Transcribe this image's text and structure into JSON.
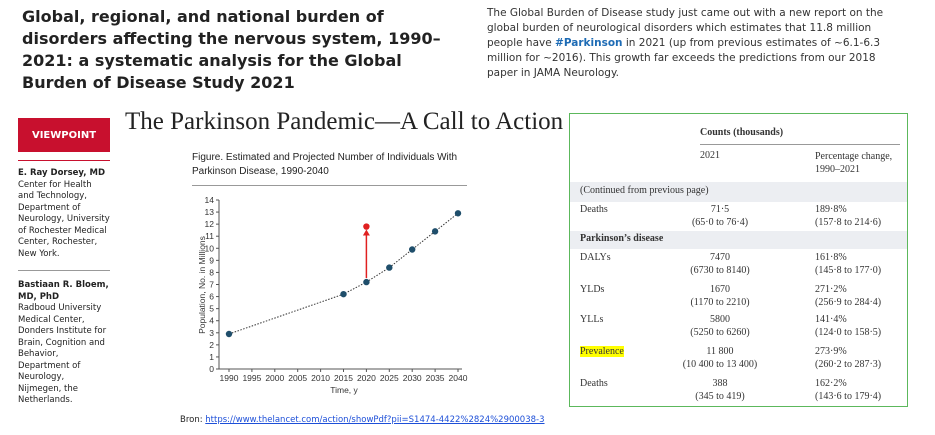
{
  "headline": "Global, regional, and national burden of disorders affecting the nervous system, 1990–2021: a systematic analysis for the Global Burden of Disease Study 2021",
  "post": {
    "before": "The Global Burden of Disease study just came out with a new report on the global burden of neurological disorders which estimates that 11.8 million people have ",
    "hashtag": "#Parkinson",
    "after": " in 2021 (up from previous estimates of ~6.1-6.3 million for ~2016). This growth far exceeds the predictions from our 2018 paper in JAMA Neurology."
  },
  "article": {
    "badge": "VIEWPOINT",
    "title": "The Parkinson Pandemic—A Call to Action",
    "authors": [
      {
        "name": "E. Ray Dorsey, MD",
        "affiliation": "Center for Health and Technology, Department of Neurology, University of Rochester Medical Center, Rochester, New York."
      },
      {
        "name": "Bastiaan R. Bloem, MD, PhD",
        "affiliation": "Radboud University Medical Center, Donders Institute for Brain, Cognition and Behavior, Department of Neurology, Nijmegen, the Netherlands."
      }
    ],
    "figure_caption": "Figure. Estimated and Projected Number of Individuals With Parkinson Disease, 1990-2040"
  },
  "chart_data": {
    "type": "scatter",
    "x_label": "Time, y",
    "y_label": "Population, No. in Millions",
    "series": [
      {
        "color": "#1f4e6b",
        "x": [
          1990,
          2015,
          2020,
          2025,
          2030,
          2035,
          2040
        ],
        "values": [
          2.9,
          6.2,
          7.2,
          8.4,
          9.9,
          11.4,
          12.9
        ]
      },
      {
        "color": "#e02020",
        "x": [
          2020
        ],
        "values": [
          11.8
        ]
      }
    ],
    "xlim": [
      1990,
      2040
    ],
    "ylim": [
      0,
      14
    ],
    "xticks": [
      1990,
      1995,
      2000,
      2005,
      2010,
      2015,
      2020,
      2025,
      2030,
      2035,
      2040
    ],
    "yticks": [
      0,
      1,
      2,
      3,
      4,
      5,
      6,
      7,
      8,
      9,
      10,
      11,
      12,
      13,
      14
    ]
  },
  "table": {
    "group_header": "Counts (thousands)",
    "col1": "2021",
    "col2": "Percentage change, 1990–2021",
    "continued": "(Continued from previous page)",
    "rows": [
      [
        "Deaths",
        "71·5",
        "(65·0 to 76·4)",
        "189·8%",
        "(157·8 to 214·6)"
      ],
      [
        "DALYs",
        "7470",
        "(6730 to 8140)",
        "161·8%",
        "(145·8 to 177·0)"
      ],
      [
        "YLDs",
        "1670",
        "(1170 to 2210)",
        "271·2%",
        "(256·9 to 284·4)"
      ],
      [
        "YLLs",
        "5800",
        "(5250 to 6260)",
        "141·4%",
        "(124·0 to 158·5)"
      ],
      [
        "Prevalence",
        "11 800",
        "(10 400 to 13 400)",
        "273·9%",
        "(260·2 to 287·3)"
      ],
      [
        "Deaths",
        "388",
        "(345 to 419)",
        "162·2%",
        "(143·6 to 179·4)"
      ]
    ],
    "section": "Parkinson’s disease"
  },
  "source": {
    "label": "Bron: ",
    "url": "https://www.thelancet.com/action/showPdf?pii=S1474-4422%2824%2900038-3"
  }
}
